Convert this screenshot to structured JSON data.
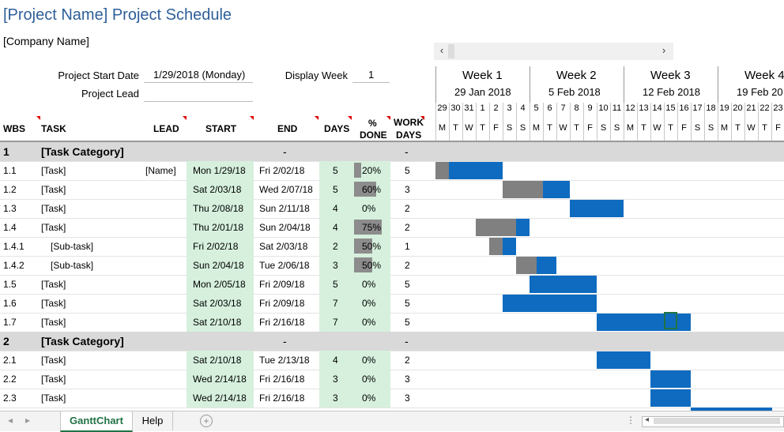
{
  "title": "[Project Name] Project Schedule",
  "company": "[Company Name]",
  "fields": {
    "start_label": "Project Start Date",
    "start_value": "1/29/2018 (Monday)",
    "lead_label": "Project Lead",
    "lead_value": "",
    "display_week_label": "Display Week",
    "display_week_value": "1"
  },
  "scroll": {
    "left": "‹",
    "right": "›"
  },
  "weeks": [
    {
      "name": "Week 1",
      "date": "29 Jan 2018"
    },
    {
      "name": "Week 2",
      "date": "5 Feb 2018"
    },
    {
      "name": "Week 3",
      "date": "12 Feb 2018"
    },
    {
      "name": "Week 4",
      "date": "19 Feb 20"
    }
  ],
  "day_numbers": [
    "29",
    "30",
    "31",
    "1",
    "2",
    "3",
    "4",
    "5",
    "6",
    "7",
    "8",
    "9",
    "10",
    "11",
    "12",
    "13",
    "14",
    "15",
    "16",
    "17",
    "18",
    "19",
    "20",
    "21",
    "22",
    "23"
  ],
  "day_letters": [
    "M",
    "T",
    "W",
    "T",
    "F",
    "S",
    "S",
    "M",
    "T",
    "W",
    "T",
    "F",
    "S",
    "S",
    "M",
    "T",
    "W",
    "T",
    "F",
    "S",
    "S",
    "M",
    "T",
    "W",
    "T",
    "F"
  ],
  "headers": {
    "wbs": "WBS",
    "task": "TASK",
    "lead": "LEAD",
    "start": "START",
    "end": "END",
    "days": "DAYS",
    "pct1": "%",
    "pct2": "DONE",
    "work1": "WORK",
    "work2": "DAYS"
  },
  "rows": [
    {
      "type": "cat",
      "wbs": "1",
      "task": "[Task Category]",
      "end": "-",
      "work": "-"
    },
    {
      "wbs": "1.1",
      "task": "[Task]",
      "lead": "[Name]",
      "start": "Mon 1/29/18",
      "end": "Fri 2/02/18",
      "days": "5",
      "pct": "20%",
      "pct_value": 0.2,
      "work": "5",
      "bar_start_day": 0,
      "bar_days": 5
    },
    {
      "wbs": "1.2",
      "task": "[Task]",
      "lead": "",
      "start": "Sat 2/03/18",
      "end": "Wed 2/07/18",
      "days": "5",
      "pct": "60%",
      "pct_value": 0.6,
      "work": "3",
      "bar_start_day": 5,
      "bar_days": 5
    },
    {
      "wbs": "1.3",
      "task": "[Task]",
      "lead": "",
      "start": "Thu 2/08/18",
      "end": "Sun 2/11/18",
      "days": "4",
      "pct": "0%",
      "pct_value": 0,
      "work": "2",
      "bar_start_day": 10,
      "bar_days": 4
    },
    {
      "wbs": "1.4",
      "task": "[Task]",
      "lead": "",
      "start": "Thu 2/01/18",
      "end": "Sun 2/04/18",
      "days": "4",
      "pct": "75%",
      "pct_value": 0.75,
      "work": "2",
      "bar_start_day": 3,
      "bar_days": 4
    },
    {
      "wbs": "1.4.1",
      "task": "[Sub-task]",
      "sub": true,
      "lead": "",
      "start": "Fri 2/02/18",
      "end": "Sat 2/03/18",
      "days": "2",
      "pct": "50%",
      "pct_value": 0.5,
      "work": "1",
      "bar_start_day": 4,
      "bar_days": 2
    },
    {
      "wbs": "1.4.2",
      "task": "[Sub-task]",
      "sub": true,
      "lead": "",
      "start": "Sun 2/04/18",
      "end": "Tue 2/06/18",
      "days": "3",
      "pct": "50%",
      "pct_value": 0.5,
      "work": "2",
      "bar_start_day": 6,
      "bar_days": 3
    },
    {
      "wbs": "1.5",
      "task": "[Task]",
      "lead": "",
      "start": "Mon 2/05/18",
      "end": "Fri 2/09/18",
      "days": "5",
      "pct": "0%",
      "pct_value": 0,
      "work": "5",
      "bar_start_day": 7,
      "bar_days": 5
    },
    {
      "wbs": "1.6",
      "task": "[Task]",
      "lead": "",
      "start": "Sat 2/03/18",
      "end": "Fri 2/09/18",
      "days": "7",
      "pct": "0%",
      "pct_value": 0,
      "work": "5",
      "bar_start_day": 5,
      "bar_days": 7
    },
    {
      "wbs": "1.7",
      "task": "[Task]",
      "lead": "",
      "start": "Sat 2/10/18",
      "end": "Fri 2/16/18",
      "days": "7",
      "pct": "0%",
      "pct_value": 0,
      "work": "5",
      "bar_start_day": 12,
      "bar_days": 7
    },
    {
      "type": "cat",
      "wbs": "2",
      "task": "[Task Category]",
      "end": "-",
      "work": "-"
    },
    {
      "wbs": "2.1",
      "task": "[Task]",
      "lead": "",
      "start": "Sat 2/10/18",
      "end": "Tue 2/13/18",
      "days": "4",
      "pct": "0%",
      "pct_value": 0,
      "work": "2",
      "bar_start_day": 12,
      "bar_days": 4
    },
    {
      "wbs": "2.2",
      "task": "[Task]",
      "lead": "",
      "start": "Wed 2/14/18",
      "end": "Fri 2/16/18",
      "days": "3",
      "pct": "0%",
      "pct_value": 0,
      "work": "3",
      "bar_start_day": 16,
      "bar_days": 3
    },
    {
      "wbs": "2.3",
      "task": "[Task]",
      "lead": "",
      "start": "Wed 2/14/18",
      "end": "Fri 2/16/18",
      "days": "3",
      "pct": "0%",
      "pct_value": 0,
      "work": "3",
      "bar_start_day": 16,
      "bar_days": 3
    }
  ],
  "tabs": [
    {
      "label": "GanttChart",
      "active": true
    },
    {
      "label": "Help",
      "active": false
    }
  ],
  "add_sheet": "+",
  "colors": {
    "bar": "#0e6bbf",
    "done": "#808080",
    "title": "#2e5f99",
    "cell_highlight": "#d6f0dd",
    "category": "#d9d9d9"
  }
}
